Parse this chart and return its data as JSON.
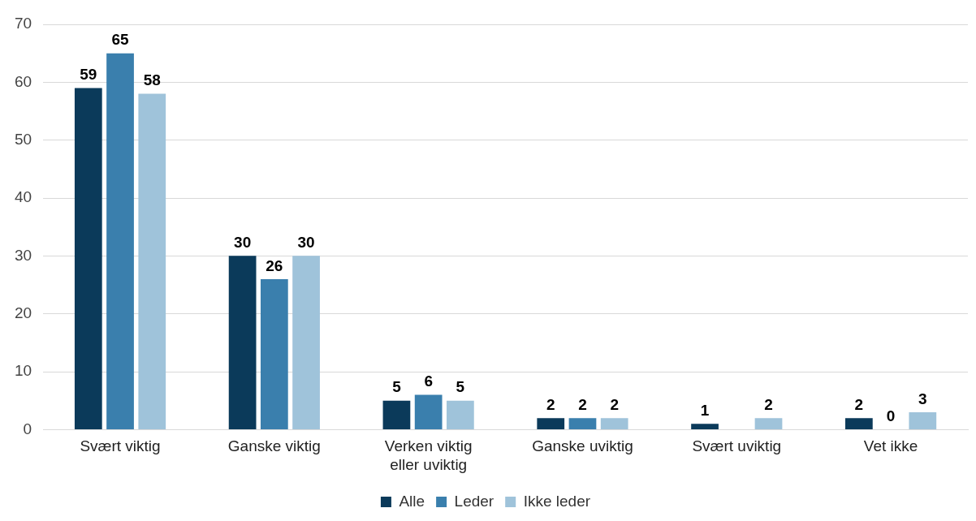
{
  "chart_data": {
    "type": "bar",
    "categories": [
      "Svært viktig",
      "Ganske viktig",
      "Verken viktig eller uviktig",
      "Ganske uviktig",
      "Svært uviktig",
      "Vet ikke"
    ],
    "series": [
      {
        "name": "Alle",
        "color": "#0b3a5a",
        "values": [
          59,
          30,
          5,
          2,
          1,
          2
        ]
      },
      {
        "name": "Leder",
        "color": "#3a7fad",
        "values": [
          65,
          26,
          6,
          2,
          null,
          0
        ]
      },
      {
        "name": "Ikke leder",
        "color": "#9fc3da",
        "values": [
          58,
          30,
          5,
          2,
          2,
          3
        ]
      }
    ],
    "ylim": [
      0,
      70
    ],
    "yticks": [
      0,
      10,
      20,
      30,
      40,
      50,
      60,
      70
    ],
    "grid": "y",
    "legend": "bottom",
    "data_labels": true
  }
}
